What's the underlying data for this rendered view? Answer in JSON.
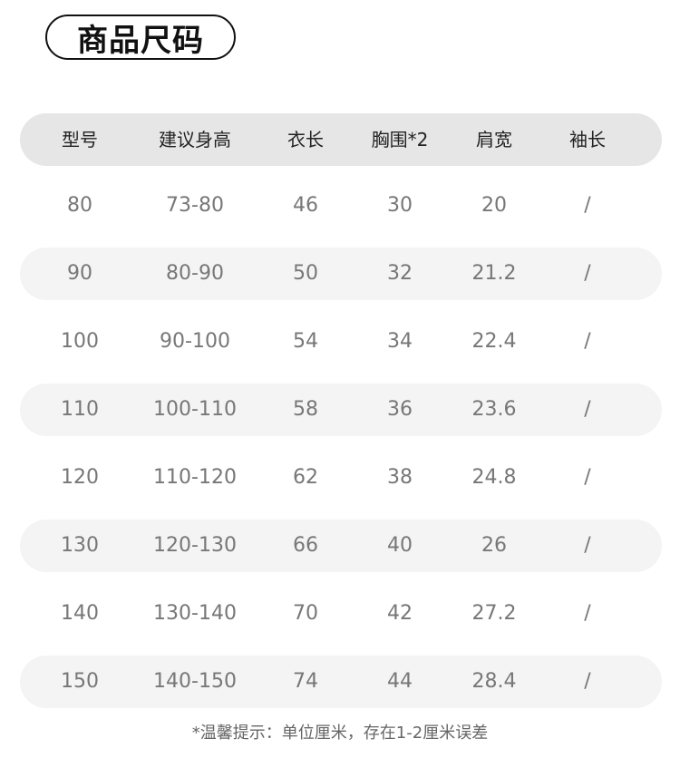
{
  "title": "商品尺码",
  "table": {
    "headers": [
      "型号",
      "建议身高",
      "衣长",
      "胸围*2",
      "肩宽",
      "袖长"
    ],
    "rows": [
      [
        "80",
        "73-80",
        "46",
        "30",
        "20",
        "/"
      ],
      [
        "90",
        "80-90",
        "50",
        "32",
        "21.2",
        "/"
      ],
      [
        "100",
        "90-100",
        "54",
        "34",
        "22.4",
        "/"
      ],
      [
        "110",
        "100-110",
        "58",
        "36",
        "23.6",
        "/"
      ],
      [
        "120",
        "110-120",
        "62",
        "38",
        "24.8",
        "/"
      ],
      [
        "130",
        "120-130",
        "66",
        "40",
        "26",
        "/"
      ],
      [
        "140",
        "130-140",
        "70",
        "42",
        "27.2",
        "/"
      ],
      [
        "150",
        "140-150",
        "74",
        "44",
        "28.4",
        "/"
      ]
    ]
  },
  "note": "*温馨提示：单位厘米，存在1-2厘米误差"
}
